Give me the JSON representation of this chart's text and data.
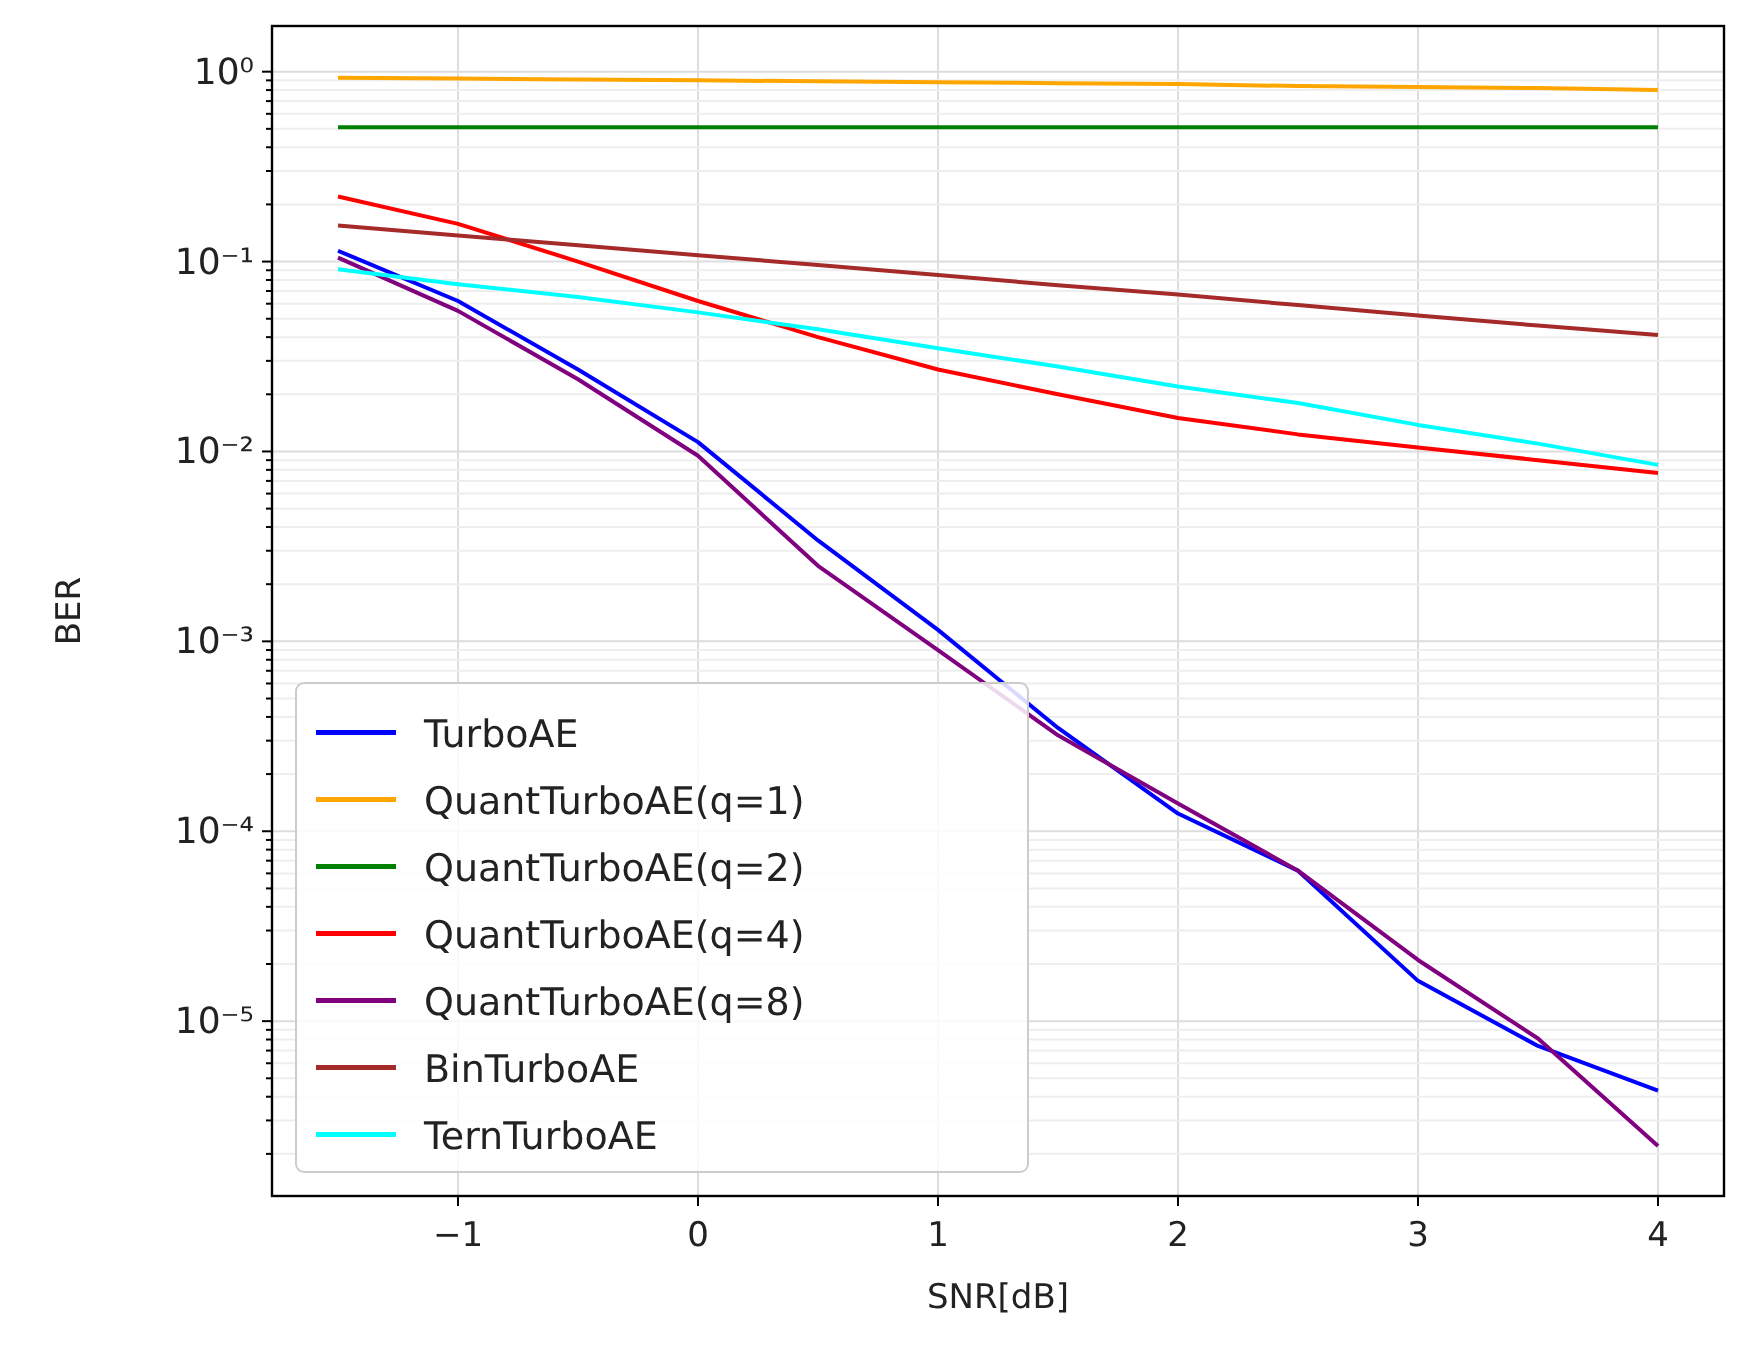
{
  "chart_data": {
    "type": "line",
    "xlabel": "SNR[dB]",
    "ylabel": "BER",
    "log": "y",
    "grid": true,
    "legend": "bottom left",
    "line_style": "solid",
    "marker": "none",
    "x": [
      -1.5,
      -1,
      -0.5,
      0,
      0.5,
      1,
      1.5,
      2,
      2.5,
      3,
      3.5,
      4
    ],
    "xlim": [
      -1.775,
      4.275
    ],
    "xticks": [
      -1,
      0,
      1,
      2,
      3,
      4
    ],
    "ylim": [
      1.2e-06,
      1.74
    ],
    "yticks": [
      {
        "value": 1,
        "label": "10⁰"
      },
      {
        "value": 0.1,
        "label": "10⁻¹"
      },
      {
        "value": 0.01,
        "label": "10⁻²"
      },
      {
        "value": 0.001,
        "label": "10⁻³"
      },
      {
        "value": 0.0001,
        "label": "10⁻⁴"
      },
      {
        "value": 1e-05,
        "label": "10⁻⁵"
      },
      {
        "value": 2e-06,
        "label": null
      },
      {
        "value": 3e-06,
        "label": null
      },
      {
        "value": 4e-06,
        "label": null
      },
      {
        "value": 5e-06,
        "label": null
      },
      {
        "value": 6e-06,
        "label": null
      },
      {
        "value": 7e-06,
        "label": null
      },
      {
        "value": 8e-06,
        "label": null
      },
      {
        "value": 9e-06,
        "label": null
      },
      {
        "value": 2e-05,
        "label": null
      },
      {
        "value": 3e-05,
        "label": null
      },
      {
        "value": 4e-05,
        "label": null
      },
      {
        "value": 5e-05,
        "label": null
      },
      {
        "value": 6e-05,
        "label": null
      },
      {
        "value": 7e-05,
        "label": null
      },
      {
        "value": 8e-05,
        "label": null
      },
      {
        "value": 9e-05,
        "label": null
      },
      {
        "value": 0.0002,
        "label": null
      },
      {
        "value": 0.0003,
        "label": null
      },
      {
        "value": 0.0004,
        "label": null
      },
      {
        "value": 0.0005,
        "label": null
      },
      {
        "value": 0.0006,
        "label": null
      },
      {
        "value": 0.0007,
        "label": null
      },
      {
        "value": 0.0008,
        "label": null
      },
      {
        "value": 0.0009,
        "label": null
      },
      {
        "value": 0.002,
        "label": null
      },
      {
        "value": 0.003,
        "label": null
      },
      {
        "value": 0.004,
        "label": null
      },
      {
        "value": 0.005,
        "label": null
      },
      {
        "value": 0.006,
        "label": null
      },
      {
        "value": 0.007,
        "label": null
      },
      {
        "value": 0.008,
        "label": null
      },
      {
        "value": 0.009,
        "label": null
      },
      {
        "value": 0.02,
        "label": null
      },
      {
        "value": 0.03,
        "label": null
      },
      {
        "value": 0.04,
        "label": null
      },
      {
        "value": 0.05,
        "label": null
      },
      {
        "value": 0.06,
        "label": null
      },
      {
        "value": 0.07,
        "label": null
      },
      {
        "value": 0.08,
        "label": null
      },
      {
        "value": 0.09,
        "label": null
      },
      {
        "value": 0.2,
        "label": null
      },
      {
        "value": 0.3,
        "label": null
      },
      {
        "value": 0.4,
        "label": null
      },
      {
        "value": 0.5,
        "label": null
      },
      {
        "value": 0.6,
        "label": null
      },
      {
        "value": 0.7,
        "label": null
      },
      {
        "value": 0.8,
        "label": null
      },
      {
        "value": 0.9,
        "label": null
      }
    ],
    "series": [
      {
        "name": "TurboAE",
        "color": "#0000ff",
        "values": [
          0.114,
          0.062,
          0.027,
          0.0112,
          0.0034,
          0.00115,
          0.00035,
          0.000124,
          6.2e-05,
          1.63e-05,
          7.4e-06,
          4.3e-06
        ]
      },
      {
        "name": "QuantTurboAE(q=1)",
        "color": "#ffa500",
        "values": [
          0.93,
          0.92,
          0.91,
          0.9,
          0.89,
          0.88,
          0.87,
          0.86,
          0.84,
          0.83,
          0.82,
          0.8
        ]
      },
      {
        "name": "QuantTurboAE(q=2)",
        "color": "#008000",
        "values": [
          0.51,
          0.51,
          0.51,
          0.51,
          0.51,
          0.51,
          0.51,
          0.51,
          0.51,
          0.51,
          0.51,
          0.51
        ]
      },
      {
        "name": "QuantTurboAE(q=4)",
        "color": "#ff0000",
        "values": [
          0.22,
          0.158,
          0.1,
          0.062,
          0.04,
          0.027,
          0.02,
          0.015,
          0.0123,
          0.0105,
          0.009,
          0.0077
        ]
      },
      {
        "name": "QuantTurboAE(q=8)",
        "color": "#800080",
        "values": [
          0.105,
          0.055,
          0.024,
          0.0095,
          0.0025,
          0.0009,
          0.00032,
          0.00014,
          6.2e-05,
          2.1e-05,
          8.1e-06,
          2.2e-06
        ]
      },
      {
        "name": "BinTurboAE",
        "color": "#a52a2a",
        "values": [
          0.155,
          0.137,
          0.122,
          0.108,
          0.096,
          0.085,
          0.075,
          0.067,
          0.059,
          0.052,
          0.046,
          0.041
        ]
      },
      {
        "name": "TernTurboAE",
        "color": "#00ffff",
        "values": [
          0.091,
          0.076,
          0.065,
          0.054,
          0.044,
          0.035,
          0.028,
          0.022,
          0.018,
          0.0138,
          0.011,
          0.0085
        ]
      }
    ]
  }
}
